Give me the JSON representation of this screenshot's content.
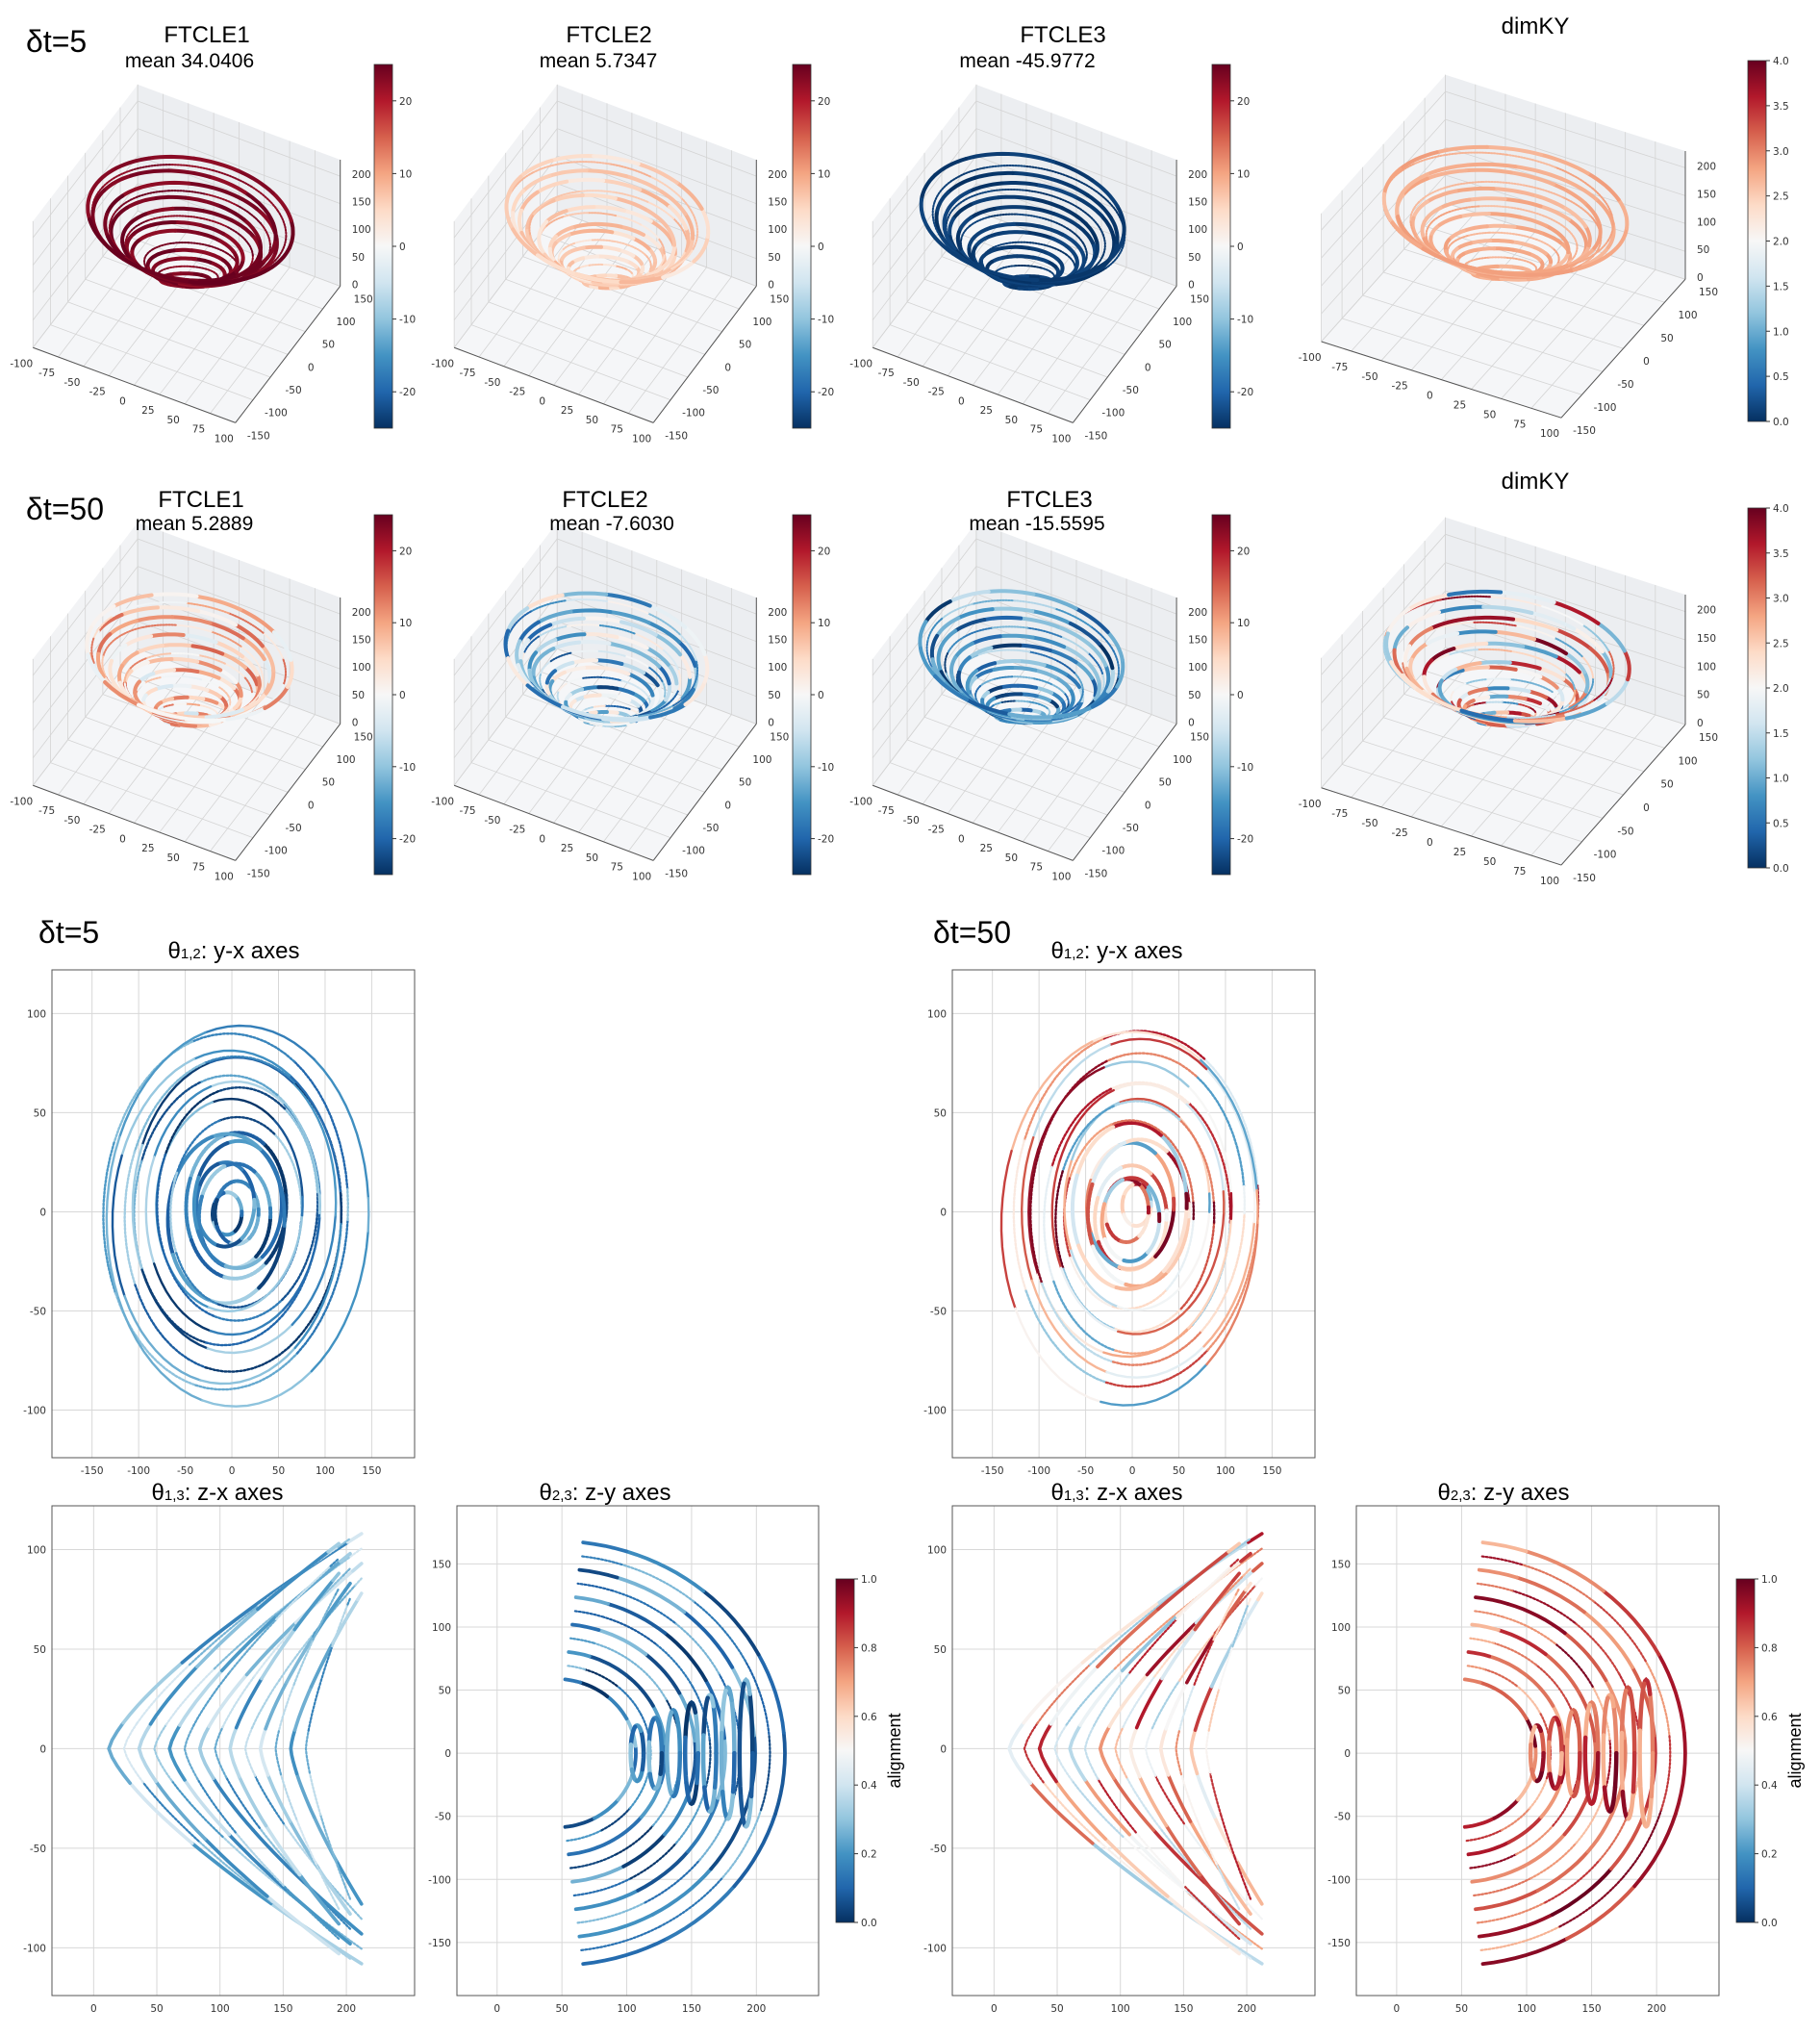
{
  "figure": {
    "row_labels": [
      "δt=5",
      "δt=50",
      "δt=5",
      "δt=50"
    ]
  },
  "colormap_stops": [
    "#053061",
    "#2166ac",
    "#4393c3",
    "#92c5de",
    "#d1e5f0",
    "#f7f7f7",
    "#fddbc7",
    "#f4a582",
    "#d6604d",
    "#b2182b",
    "#67001f"
  ],
  "chart_data": [
    {
      "id": "ftcle1_dt5",
      "type": "scatter3d",
      "title": "FTCLE1",
      "subtitle": "mean 34.0406",
      "mean": 34.0406,
      "x_ticks": [
        -100,
        -75,
        -50,
        -25,
        0,
        25,
        50,
        75,
        100
      ],
      "y_ticks": [
        -150,
        -100,
        -50,
        0,
        50,
        100,
        150
      ],
      "z_ticks": [
        0,
        50,
        100,
        150,
        200
      ],
      "xlim": [
        -100,
        100
      ],
      "ylim": [
        -150,
        150
      ],
      "zlim": [
        0,
        230
      ],
      "typical_value_range": [
        22,
        25
      ],
      "colorbar": {
        "min": -25,
        "max": 25,
        "ticks": [
          "-20",
          "-10",
          "0",
          "10",
          "20"
        ]
      }
    },
    {
      "id": "ftcle2_dt5",
      "type": "scatter3d",
      "title": "FTCLE2",
      "subtitle": "mean 5.7347",
      "mean": 5.7347,
      "x_ticks": [
        -100,
        -75,
        -50,
        -25,
        0,
        25,
        50,
        75,
        100
      ],
      "y_ticks": [
        -150,
        -100,
        -50,
        0,
        50,
        100,
        150
      ],
      "z_ticks": [
        0,
        50,
        100,
        150,
        200
      ],
      "xlim": [
        -100,
        100
      ],
      "ylim": [
        -150,
        150
      ],
      "zlim": [
        0,
        230
      ],
      "typical_value_range": [
        2,
        9
      ],
      "colorbar": {
        "min": -25,
        "max": 25,
        "ticks": [
          "-20",
          "-10",
          "0",
          "10",
          "20"
        ]
      }
    },
    {
      "id": "ftcle3_dt5",
      "type": "scatter3d",
      "title": "FTCLE3",
      "subtitle": "mean -45.9772",
      "mean": -45.9772,
      "x_ticks": [
        -100,
        -75,
        -50,
        -25,
        0,
        25,
        50,
        75,
        100
      ],
      "y_ticks": [
        -150,
        -100,
        -50,
        0,
        50,
        100,
        150
      ],
      "z_ticks": [
        0,
        50,
        100,
        150,
        200
      ],
      "xlim": [
        -100,
        100
      ],
      "ylim": [
        -150,
        150
      ],
      "zlim": [
        0,
        230
      ],
      "typical_value_range": [
        -25,
        -23
      ],
      "colorbar": {
        "min": -25,
        "max": 25,
        "ticks": [
          "-20",
          "-10",
          "0",
          "10",
          "20"
        ]
      }
    },
    {
      "id": "dimky_dt5",
      "type": "scatter3d",
      "title": "dimKY",
      "x_ticks": [
        -100,
        -75,
        -50,
        -25,
        0,
        25,
        50,
        75,
        100
      ],
      "y_ticks": [
        -150,
        -100,
        -50,
        0,
        50,
        100,
        150
      ],
      "z_ticks": [
        0,
        50,
        100,
        150,
        200
      ],
      "xlim": [
        -100,
        100
      ],
      "ylim": [
        -150,
        150
      ],
      "zlim": [
        0,
        230
      ],
      "typical_value_range": [
        2.6,
        2.85
      ],
      "colorbar": {
        "min": 0,
        "max": 4,
        "ticks": [
          "0.0",
          "0.5",
          "1.0",
          "1.5",
          "2.0",
          "2.5",
          "3.0",
          "3.5",
          "4.0"
        ]
      }
    },
    {
      "id": "ftcle1_dt50",
      "type": "scatter3d",
      "title": "FTCLE1",
      "subtitle": "mean 5.2889",
      "mean": 5.2889,
      "x_ticks": [
        -100,
        -75,
        -50,
        -25,
        0,
        25,
        50,
        75,
        100
      ],
      "y_ticks": [
        -150,
        -100,
        -50,
        0,
        50,
        100,
        150
      ],
      "z_ticks": [
        0,
        50,
        100,
        150,
        200
      ],
      "xlim": [
        -100,
        100
      ],
      "ylim": [
        -150,
        150
      ],
      "zlim": [
        0,
        230
      ],
      "typical_value_range": [
        -5,
        15
      ],
      "colorbar": {
        "min": -25,
        "max": 25,
        "ticks": [
          "-20",
          "-10",
          "0",
          "10",
          "20"
        ]
      }
    },
    {
      "id": "ftcle2_dt50",
      "type": "scatter3d",
      "title": "FTCLE2",
      "subtitle": "mean -7.6030",
      "mean": -7.603,
      "x_ticks": [
        -100,
        -75,
        -50,
        -25,
        0,
        25,
        50,
        75,
        100
      ],
      "y_ticks": [
        -150,
        -100,
        -50,
        0,
        50,
        100,
        150
      ],
      "z_ticks": [
        0,
        50,
        100,
        150,
        200
      ],
      "xlim": [
        -100,
        100
      ],
      "ylim": [
        -150,
        150
      ],
      "zlim": [
        0,
        230
      ],
      "typical_value_range": [
        -24,
        4
      ],
      "colorbar": {
        "min": -25,
        "max": 25,
        "ticks": [
          "-20",
          "-10",
          "0",
          "10",
          "20"
        ]
      }
    },
    {
      "id": "ftcle3_dt50",
      "type": "scatter3d",
      "title": "FTCLE3",
      "subtitle": "mean -15.5595",
      "mean": -15.5595,
      "x_ticks": [
        -100,
        -75,
        -50,
        -25,
        0,
        25,
        50,
        75,
        100
      ],
      "y_ticks": [
        -150,
        -100,
        -50,
        0,
        50,
        100,
        150
      ],
      "z_ticks": [
        0,
        50,
        100,
        150,
        200
      ],
      "xlim": [
        -100,
        100
      ],
      "ylim": [
        -150,
        150
      ],
      "zlim": [
        0,
        230
      ],
      "typical_value_range": [
        -25,
        -6
      ],
      "colorbar": {
        "min": -25,
        "max": 25,
        "ticks": [
          "-20",
          "-10",
          "0",
          "10",
          "20"
        ]
      }
    },
    {
      "id": "dimky_dt50",
      "type": "scatter3d",
      "title": "dimKY",
      "x_ticks": [
        -100,
        -75,
        -50,
        -25,
        0,
        25,
        50,
        75,
        100
      ],
      "y_ticks": [
        -150,
        -100,
        -50,
        0,
        50,
        100,
        150
      ],
      "z_ticks": [
        0,
        50,
        100,
        150,
        200
      ],
      "xlim": [
        -100,
        100
      ],
      "ylim": [
        -150,
        150
      ],
      "zlim": [
        0,
        230
      ],
      "typical_value_range": [
        0.3,
        4.0
      ],
      "colorbar": {
        "min": 0,
        "max": 4,
        "ticks": [
          "0.0",
          "0.5",
          "1.0",
          "1.5",
          "2.0",
          "2.5",
          "3.0",
          "3.5",
          "4.0"
        ]
      }
    },
    {
      "id": "theta12_dt5",
      "type": "scatter",
      "shape": "yx",
      "title_symbol": "θ",
      "title_sub": "1,2",
      "title_rest": ": y-x axes",
      "x_ticks": [
        -150,
        -100,
        -50,
        0,
        50,
        100,
        150
      ],
      "y_ticks": [
        -100,
        -50,
        0,
        50,
        100
      ],
      "xlim": [
        -193,
        196
      ],
      "ylim": [
        -124,
        122
      ],
      "typical_value_range": [
        0,
        0.35
      ],
      "cb_min": 0,
      "cb_max": 1
    },
    {
      "id": "theta13_dt5",
      "type": "scatter",
      "shape": "zx",
      "title_symbol": "θ",
      "title_sub": "1,3",
      "title_rest": ": z-x axes",
      "x_ticks": [
        0,
        50,
        100,
        150,
        200
      ],
      "y_ticks": [
        -100,
        -50,
        0,
        50,
        100
      ],
      "xlim": [
        -33,
        254
      ],
      "ylim": [
        -124,
        122
      ],
      "typical_value_range": [
        0.15,
        0.42
      ],
      "cb_min": 0,
      "cb_max": 1
    },
    {
      "id": "theta23_dt5",
      "type": "scatter",
      "shape": "zy",
      "title_symbol": "θ",
      "title_sub": "2,3",
      "title_rest": ": z-y axes",
      "x_ticks": [
        0,
        50,
        100,
        150,
        200
      ],
      "y_ticks": [
        -150,
        -100,
        -50,
        0,
        50,
        100,
        150
      ],
      "xlim": [
        -31,
        248
      ],
      "ylim": [
        -192,
        196
      ],
      "typical_value_range": [
        0,
        0.3
      ],
      "cb_min": 0,
      "cb_max": 1,
      "colorbar": {
        "min": 0,
        "max": 1,
        "ticks": [
          "0.0",
          "0.2",
          "0.4",
          "0.6",
          "0.8",
          "1.0"
        ],
        "label": "alignment"
      }
    },
    {
      "id": "theta12_dt50",
      "type": "scatter",
      "shape": "yx",
      "title_symbol": "θ",
      "title_sub": "1,2",
      "title_rest": ": y-x axes",
      "x_ticks": [
        -150,
        -100,
        -50,
        0,
        50,
        100,
        150
      ],
      "y_ticks": [
        -100,
        -50,
        0,
        50,
        100
      ],
      "xlim": [
        -193,
        196
      ],
      "ylim": [
        -124,
        122
      ],
      "typical_value_range": [
        0.2,
        1.0
      ],
      "cb_min": 0,
      "cb_max": 1
    },
    {
      "id": "theta13_dt50",
      "type": "scatter",
      "shape": "zx",
      "title_symbol": "θ",
      "title_sub": "1,3",
      "title_rest": ": z-x axes",
      "x_ticks": [
        0,
        50,
        100,
        150,
        200
      ],
      "y_ticks": [
        -100,
        -50,
        0,
        50,
        100
      ],
      "xlim": [
        -33,
        254
      ],
      "ylim": [
        -124,
        122
      ],
      "typical_value_range": [
        0.3,
        0.95
      ],
      "cb_min": 0,
      "cb_max": 1
    },
    {
      "id": "theta23_dt50",
      "type": "scatter",
      "shape": "zy",
      "title_symbol": "θ",
      "title_sub": "2,3",
      "title_rest": ": z-y axes",
      "x_ticks": [
        0,
        50,
        100,
        150,
        200
      ],
      "y_ticks": [
        -150,
        -100,
        -50,
        0,
        50,
        100,
        150
      ],
      "xlim": [
        -31,
        248
      ],
      "ylim": [
        -192,
        196
      ],
      "typical_value_range": [
        0.65,
        1.0
      ],
      "cb_min": 0,
      "cb_max": 1,
      "colorbar": {
        "min": 0,
        "max": 1,
        "ticks": [
          "0.0",
          "0.2",
          "0.4",
          "0.6",
          "0.8",
          "1.0"
        ],
        "label": "alignment"
      }
    }
  ]
}
